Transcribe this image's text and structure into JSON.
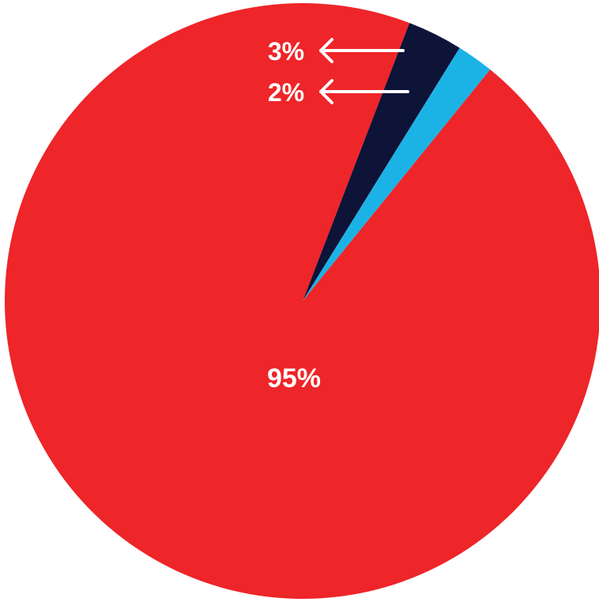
{
  "chart_data": {
    "type": "pie",
    "title": "",
    "slices": [
      {
        "label": "95%",
        "value": 95,
        "color": "#EE2529"
      },
      {
        "label": "3%",
        "value": 3,
        "color": "#0E1338"
      },
      {
        "label": "2%",
        "value": 2,
        "color": "#1BB3E6"
      }
    ],
    "legend": "none",
    "annotation_style": "callout arrows for small slices"
  }
}
